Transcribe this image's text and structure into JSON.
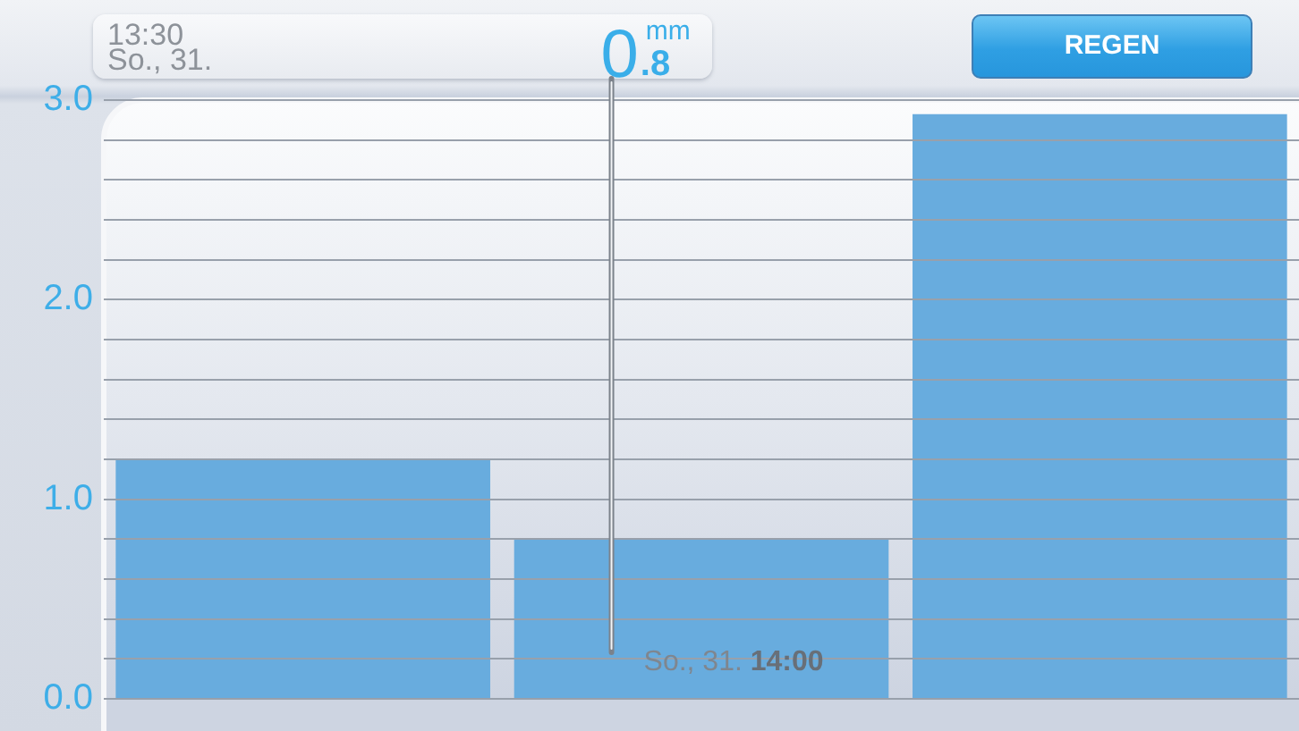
{
  "chart_data": {
    "type": "bar",
    "categories": [
      null,
      null,
      null
    ],
    "values": [
      1.2,
      0.8,
      2.93
    ],
    "color": "#68acde",
    "ylim": [
      0,
      3
    ],
    "yticks": [
      {
        "value": 0,
        "label": "0.0"
      },
      {
        "value": 0.2,
        "label": null
      },
      {
        "value": 0.4,
        "label": null
      },
      {
        "value": 0.6,
        "label": null
      },
      {
        "value": 0.8,
        "label": null
      },
      {
        "value": 1,
        "label": "1.0"
      },
      {
        "value": 1.2,
        "label": null
      },
      {
        "value": 1.4,
        "label": null
      },
      {
        "value": 1.6,
        "label": null
      },
      {
        "value": 1.8,
        "label": null
      },
      {
        "value": 2,
        "label": "2.0"
      },
      {
        "value": 2.2,
        "label": null
      },
      {
        "value": 2.4,
        "label": null
      },
      {
        "value": 2.6,
        "label": null
      },
      {
        "value": 2.8,
        "label": null
      },
      {
        "value": 3,
        "label": "3.0"
      }
    ],
    "grid": "y",
    "tick_labels": "y",
    "annotations": [
      "13:30",
      "So., 31.",
      "0.8",
      "mm",
      "REGEN",
      "So., 31. 14:00"
    ]
  }
}
